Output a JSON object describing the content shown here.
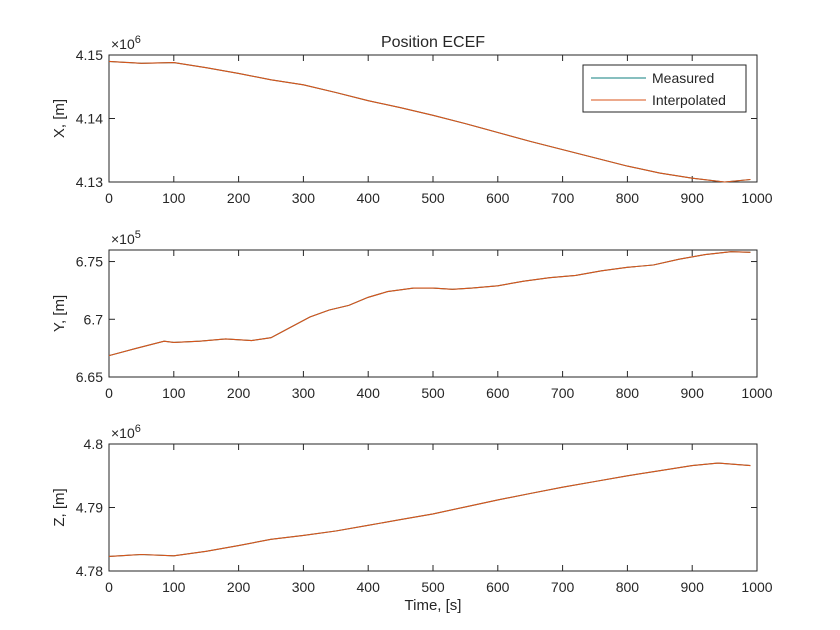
{
  "chart_data": [
    {
      "type": "line",
      "title": "Position ECEF",
      "xlabel": "",
      "ylabel": "X, [m]",
      "exponent_base": "×10",
      "exponent_power": "6",
      "xlim": [
        0,
        1000
      ],
      "ylim": [
        4.13,
        4.15
      ],
      "xticks": [
        0,
        100,
        200,
        300,
        400,
        500,
        600,
        700,
        800,
        900,
        1000
      ],
      "xticklabels": [
        "0",
        "100",
        "200",
        "300",
        "400",
        "500",
        "600",
        "700",
        "800",
        "900",
        "1000"
      ],
      "yticks": [
        4.13,
        4.14,
        4.15
      ],
      "yticklabels": [
        "4.13",
        "4.14",
        "4.15"
      ],
      "legend": {
        "placement": "top-right",
        "entries": [
          "Measured",
          "Interpolated"
        ]
      },
      "series": [
        {
          "name": "Measured",
          "color": "#0f7f7f",
          "x": [
            0,
            50,
            100,
            150,
            200,
            250,
            300,
            350,
            400,
            450,
            500,
            550,
            600,
            650,
            700,
            750,
            800,
            850,
            900,
            950,
            990
          ],
          "y": [
            4.149,
            4.1487,
            4.1488,
            4.148,
            4.1471,
            4.1461,
            4.1453,
            4.1441,
            4.1428,
            4.1417,
            4.1405,
            4.1392,
            4.1378,
            4.1364,
            4.1351,
            4.1338,
            4.1325,
            4.1314,
            4.1306,
            4.13,
            4.1304
          ]
        },
        {
          "name": "Interpolated",
          "color": "#d95319",
          "x": [
            0,
            50,
            100,
            150,
            200,
            250,
            300,
            350,
            400,
            450,
            500,
            550,
            600,
            650,
            700,
            750,
            800,
            850,
            900,
            950,
            990
          ],
          "y": [
            4.149,
            4.1487,
            4.1488,
            4.148,
            4.1471,
            4.1461,
            4.1453,
            4.1441,
            4.1428,
            4.1417,
            4.1405,
            4.1392,
            4.1378,
            4.1364,
            4.1351,
            4.1338,
            4.1325,
            4.1314,
            4.1306,
            4.13,
            4.1304
          ]
        }
      ]
    },
    {
      "type": "line",
      "title": "",
      "xlabel": "",
      "ylabel": "Y, [m]",
      "exponent_base": "×10",
      "exponent_power": "5",
      "xlim": [
        0,
        1000
      ],
      "ylim": [
        6.65,
        6.76
      ],
      "xticks": [
        0,
        100,
        200,
        300,
        400,
        500,
        600,
        700,
        800,
        900,
        1000
      ],
      "xticklabels": [
        "0",
        "100",
        "200",
        "300",
        "400",
        "500",
        "600",
        "700",
        "800",
        "900",
        "1000"
      ],
      "yticks": [
        6.65,
        6.7,
        6.75
      ],
      "yticklabels": [
        "6.65",
        "6.7",
        "6.75"
      ],
      "series": [
        {
          "name": "Measured",
          "color": "#0f7f7f",
          "x": [
            0,
            40,
            85,
            100,
            140,
            180,
            220,
            250,
            280,
            310,
            340,
            370,
            400,
            430,
            470,
            500,
            530,
            560,
            600,
            640,
            680,
            720,
            760,
            800,
            840,
            880,
            920,
            960,
            990
          ],
          "y": [
            6.6685,
            6.6745,
            6.681,
            6.68,
            6.681,
            6.683,
            6.6815,
            6.684,
            6.693,
            6.702,
            6.708,
            6.712,
            6.719,
            6.724,
            6.727,
            6.727,
            6.726,
            6.727,
            6.729,
            6.733,
            6.736,
            6.738,
            6.742,
            6.745,
            6.747,
            6.752,
            6.756,
            6.7585,
            6.758
          ]
        },
        {
          "name": "Interpolated",
          "color": "#d95319",
          "x": [
            0,
            40,
            85,
            100,
            140,
            180,
            220,
            250,
            280,
            310,
            340,
            370,
            400,
            430,
            470,
            500,
            530,
            560,
            600,
            640,
            680,
            720,
            760,
            800,
            840,
            880,
            920,
            960,
            990
          ],
          "y": [
            6.6685,
            6.6745,
            6.681,
            6.68,
            6.681,
            6.683,
            6.6815,
            6.684,
            6.693,
            6.702,
            6.708,
            6.712,
            6.719,
            6.724,
            6.727,
            6.727,
            6.726,
            6.727,
            6.729,
            6.733,
            6.736,
            6.738,
            6.742,
            6.745,
            6.747,
            6.752,
            6.756,
            6.7585,
            6.758
          ]
        }
      ]
    },
    {
      "type": "line",
      "title": "",
      "xlabel": "Time, [s]",
      "ylabel": "Z, [m]",
      "exponent_base": "×10",
      "exponent_power": "6",
      "xlim": [
        0,
        1000
      ],
      "ylim": [
        4.78,
        4.8
      ],
      "xticks": [
        0,
        100,
        200,
        300,
        400,
        500,
        600,
        700,
        800,
        900,
        1000
      ],
      "xticklabels": [
        "0",
        "100",
        "200",
        "300",
        "400",
        "500",
        "600",
        "700",
        "800",
        "900",
        "1000"
      ],
      "yticks": [
        4.78,
        4.79,
        4.8
      ],
      "yticklabels": [
        "4.78",
        "4.79",
        "4.8"
      ],
      "series": [
        {
          "name": "Measured",
          "color": "#0f7f7f",
          "x": [
            0,
            50,
            100,
            150,
            200,
            250,
            300,
            350,
            400,
            450,
            500,
            550,
            600,
            650,
            700,
            750,
            800,
            850,
            900,
            940,
            990
          ],
          "y": [
            4.7823,
            4.7826,
            4.7824,
            4.7831,
            4.784,
            4.785,
            4.7856,
            4.7863,
            4.7872,
            4.7881,
            4.789,
            4.7901,
            4.7912,
            4.7922,
            4.7932,
            4.7941,
            4.795,
            4.7958,
            4.7966,
            4.797,
            4.7966
          ]
        },
        {
          "name": "Interpolated",
          "color": "#d95319",
          "x": [
            0,
            50,
            100,
            150,
            200,
            250,
            300,
            350,
            400,
            450,
            500,
            550,
            600,
            650,
            700,
            750,
            800,
            850,
            900,
            940,
            990
          ],
          "y": [
            4.7823,
            4.7826,
            4.7824,
            4.7831,
            4.784,
            4.785,
            4.7856,
            4.7863,
            4.7872,
            4.7881,
            4.789,
            4.7901,
            4.7912,
            4.7922,
            4.7932,
            4.7941,
            4.795,
            4.7958,
            4.7966,
            4.797,
            4.7966
          ]
        }
      ]
    }
  ]
}
